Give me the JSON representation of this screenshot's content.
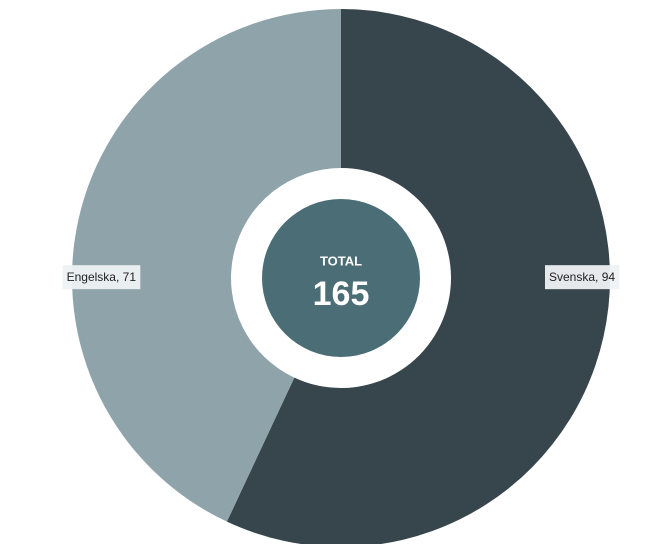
{
  "chart_data": {
    "type": "donut",
    "categories": [
      "Svenska",
      "Engelska"
    ],
    "values": [
      94,
      71
    ],
    "value_labels": [
      "Svenska, 94",
      "Engelska, 71"
    ],
    "colors": [
      "#37464d",
      "#8ea3aa"
    ],
    "center_label": "TOTAL",
    "total": 165,
    "center_color": "#4a6d76"
  }
}
